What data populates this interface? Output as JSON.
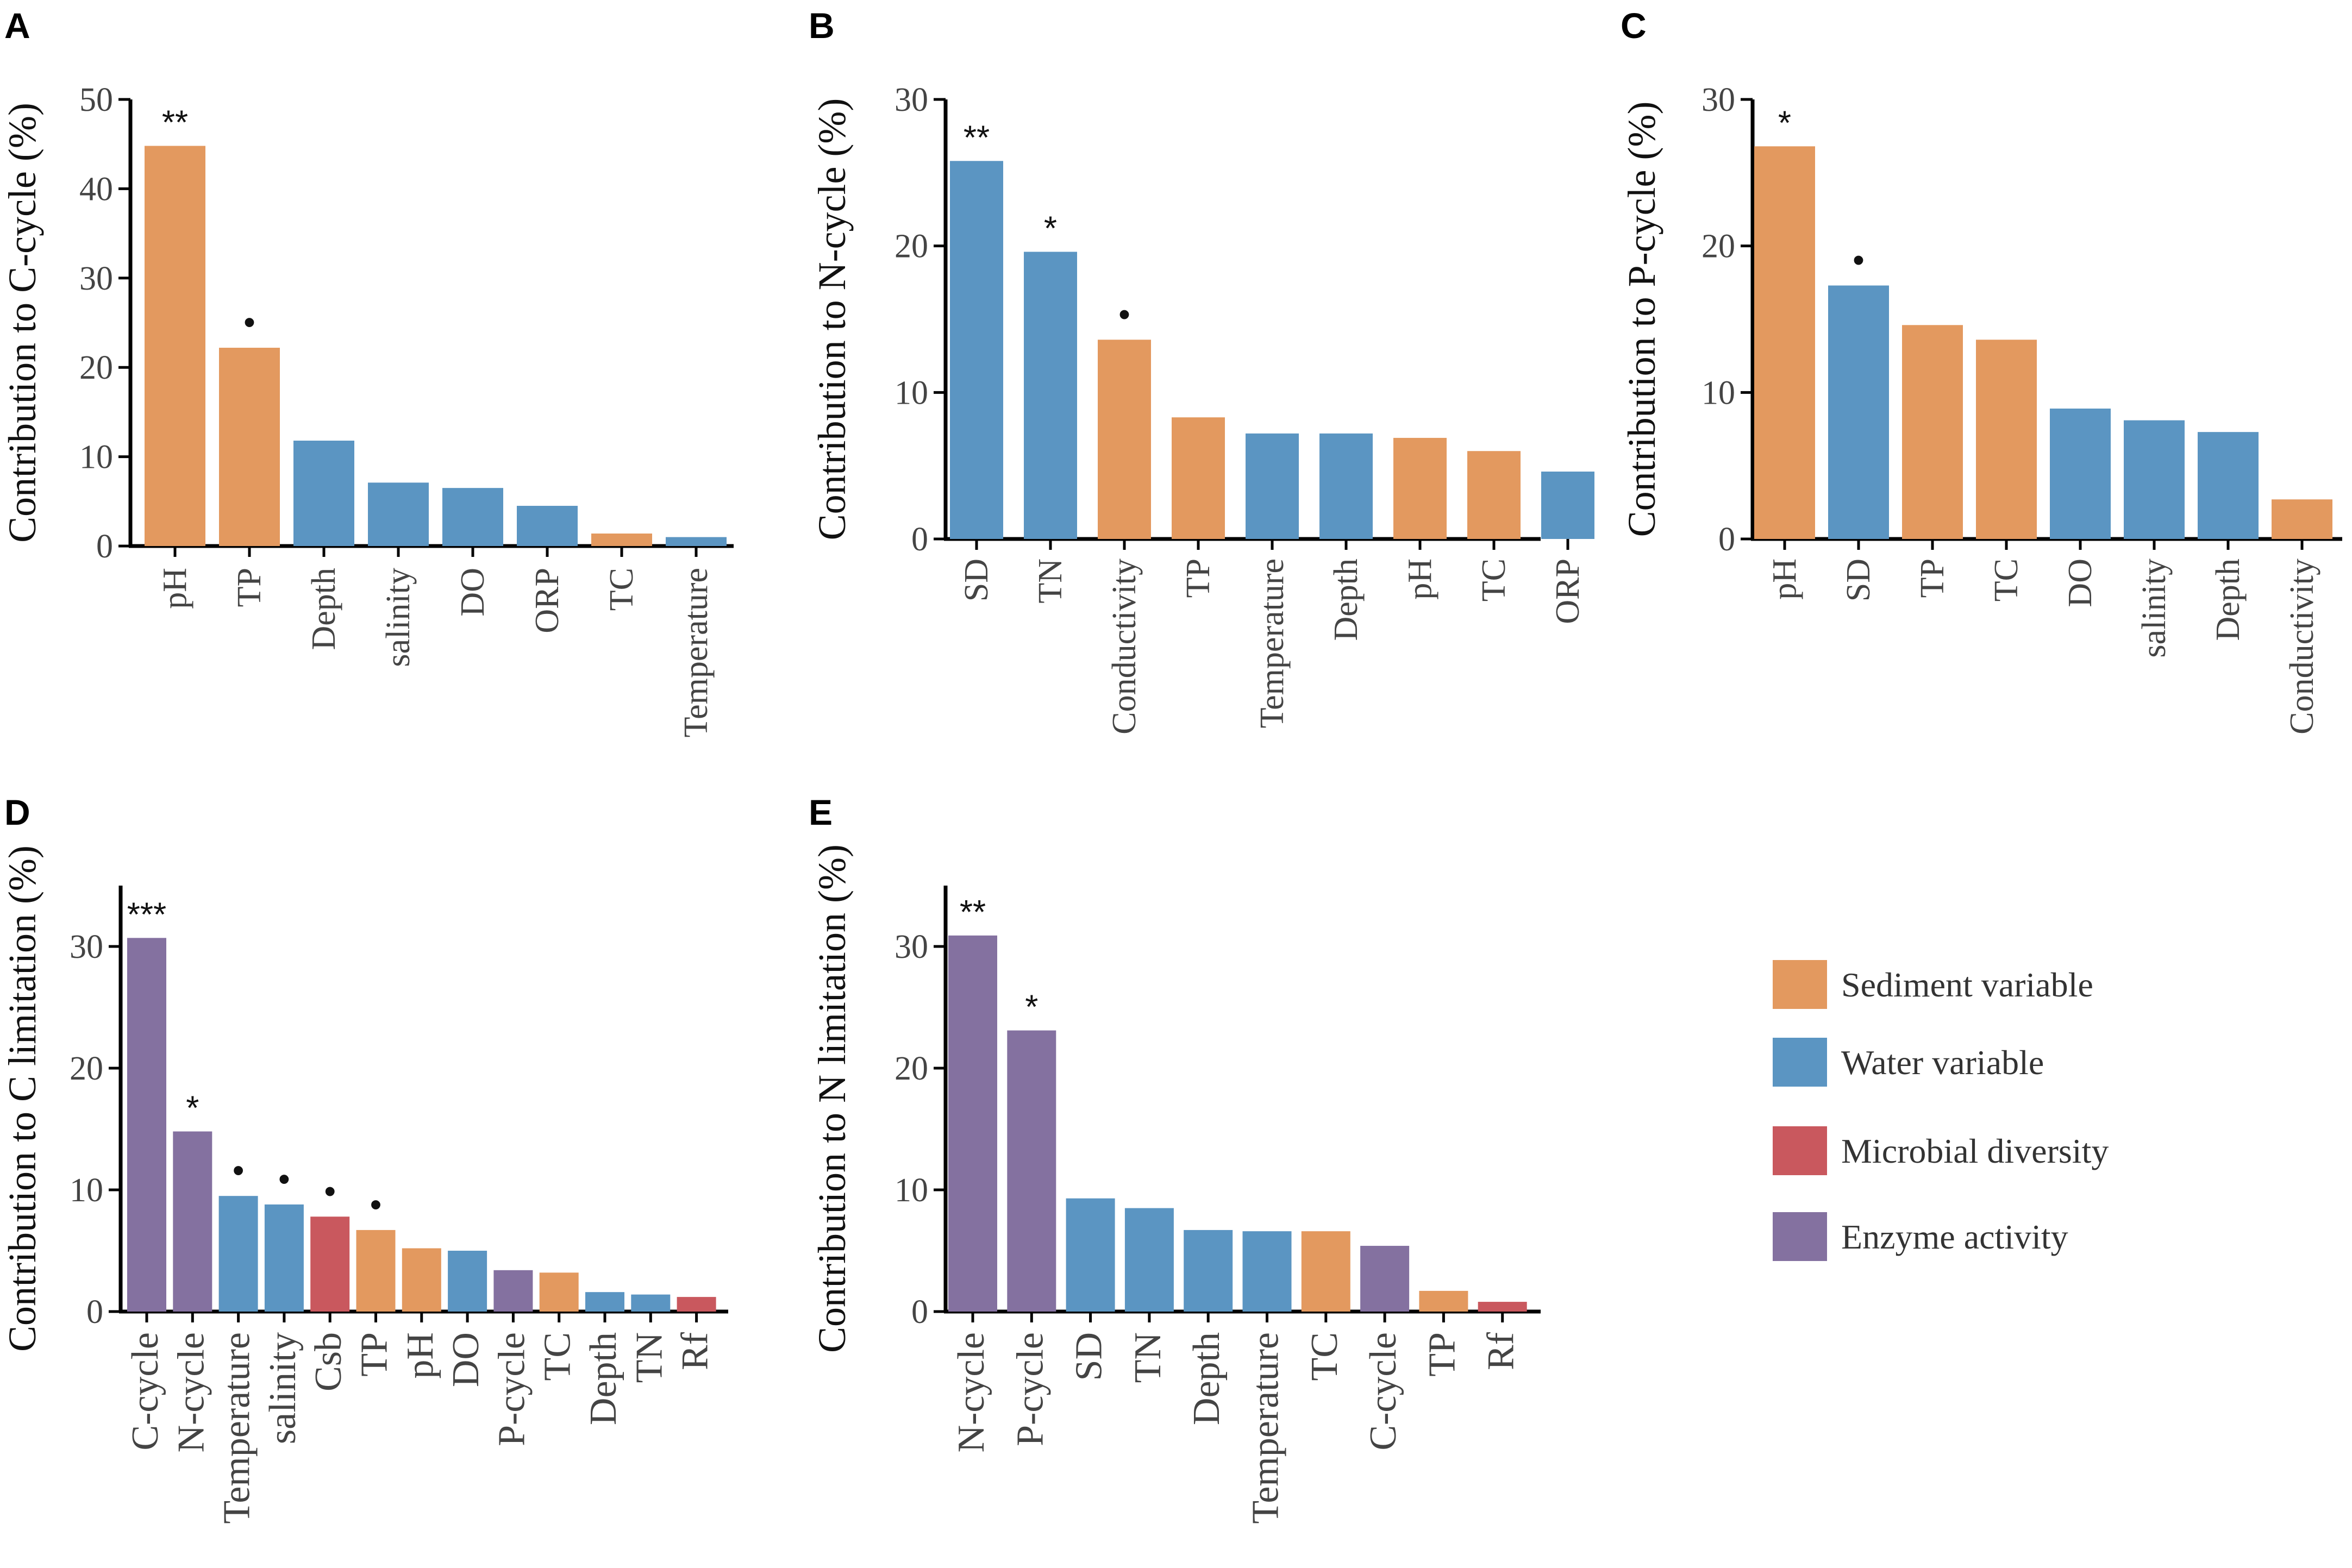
{
  "colors": {
    "sediment": "#E3995F",
    "water": "#5B95C2",
    "microbial": "#C9585E",
    "enzyme": "#8471A0"
  },
  "legend": [
    {
      "key": "sediment",
      "label": "Sediment variable"
    },
    {
      "key": "water",
      "label": "Water variable"
    },
    {
      "key": "microbial",
      "label": "Microbial diversity"
    },
    {
      "key": "enzyme",
      "label": "Enzyme activity"
    }
  ],
  "chart_data": [
    {
      "panel": "A",
      "type": "bar",
      "ylabel": "Contribution to C-cycle (%)",
      "ylim": [
        0,
        50
      ],
      "yticks": [
        0,
        10,
        20,
        30,
        40,
        50
      ],
      "categories": [
        "pH",
        "TP",
        "Depth",
        "salinity",
        "DO",
        "ORP",
        "TC",
        "Temperature"
      ],
      "values": [
        44.8,
        22.2,
        11.8,
        7.1,
        6.5,
        4.5,
        1.4,
        1.0
      ],
      "groups": [
        "sediment",
        "sediment",
        "water",
        "water",
        "water",
        "water",
        "sediment",
        "water"
      ],
      "significance": [
        "**",
        "•",
        "",
        "",
        "",
        "",
        "",
        ""
      ]
    },
    {
      "panel": "B",
      "type": "bar",
      "ylabel": "Contribution to N-cycle (%)",
      "ylim": [
        0,
        30
      ],
      "yticks": [
        0,
        10,
        20,
        30
      ],
      "categories": [
        "SD",
        "TN",
        "Conductivity",
        "TP",
        "Temperature",
        "Depth",
        "pH",
        "TC",
        "ORP"
      ],
      "values": [
        25.8,
        19.6,
        13.6,
        8.3,
        7.2,
        7.2,
        6.9,
        6.0,
        4.6
      ],
      "groups": [
        "water",
        "water",
        "sediment",
        "sediment",
        "water",
        "water",
        "sediment",
        "sediment",
        "water"
      ],
      "significance": [
        "**",
        "*",
        "•",
        "",
        "",
        "",
        "",
        "",
        ""
      ]
    },
    {
      "panel": "C",
      "type": "bar",
      "ylabel": "Contribution to P-cycle (%)",
      "ylim": [
        0,
        30
      ],
      "yticks": [
        0,
        10,
        20,
        30
      ],
      "categories": [
        "pH",
        "SD",
        "TP",
        "TC",
        "DO",
        "salinity",
        "Depth",
        "Conductivity"
      ],
      "values": [
        26.8,
        17.3,
        14.6,
        13.6,
        8.9,
        8.1,
        7.3,
        2.7
      ],
      "groups": [
        "sediment",
        "water",
        "sediment",
        "sediment",
        "water",
        "water",
        "water",
        "sediment"
      ],
      "significance": [
        "*",
        "•",
        "",
        "",
        "",
        "",
        "",
        ""
      ]
    },
    {
      "panel": "D",
      "type": "bar",
      "ylabel": "Contribution to C limitation (%)",
      "ylim": [
        0,
        35
      ],
      "yticks": [
        0,
        10,
        20,
        30
      ],
      "categories": [
        "C-cycle",
        "N-cycle",
        "Temperature",
        "salinity",
        "Csb",
        "TP",
        "pH",
        "DO",
        "P-cycle",
        "TC",
        "Depth",
        "TN",
        "Rf"
      ],
      "values": [
        30.7,
        14.8,
        9.5,
        8.8,
        7.8,
        6.7,
        5.2,
        5.0,
        3.4,
        3.2,
        1.6,
        1.4,
        1.2
      ],
      "groups": [
        "enzyme",
        "enzyme",
        "water",
        "water",
        "microbial",
        "sediment",
        "sediment",
        "water",
        "enzyme",
        "sediment",
        "water",
        "water",
        "microbial"
      ],
      "significance": [
        "***",
        "*",
        "•",
        "•",
        "•",
        "•",
        "",
        "",
        "",
        "",
        "",
        "",
        ""
      ]
    },
    {
      "panel": "E",
      "type": "bar",
      "ylabel": "Contribution to N limitation (%)",
      "ylim": [
        0,
        35
      ],
      "yticks": [
        0,
        10,
        20,
        30
      ],
      "categories": [
        "N-cycle",
        "P-cycle",
        "SD",
        "TN",
        "Depth",
        "Temperature",
        "TC",
        "C-cycle",
        "TP",
        "Rf"
      ],
      "values": [
        30.9,
        23.1,
        9.3,
        8.5,
        6.7,
        6.6,
        6.6,
        5.4,
        1.7,
        0.8
      ],
      "groups": [
        "enzyme",
        "enzyme",
        "water",
        "water",
        "water",
        "water",
        "sediment",
        "enzyme",
        "sediment",
        "microbial"
      ],
      "significance": [
        "**",
        "*",
        "",
        "",
        "",
        "",
        "",
        "",
        "",
        ""
      ]
    }
  ]
}
